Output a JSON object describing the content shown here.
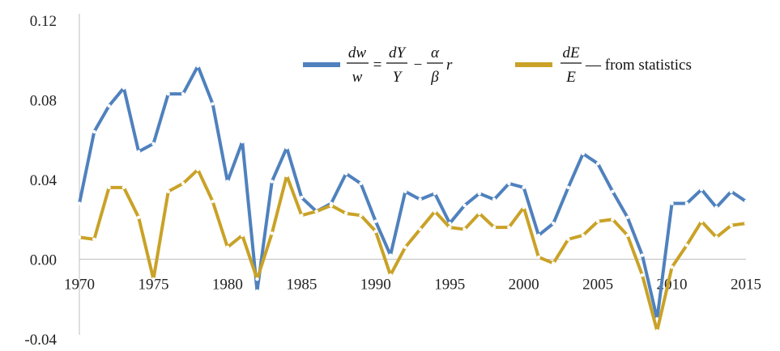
{
  "chart_data": {
    "type": "line",
    "title": "",
    "xlabel": "",
    "ylabel": "",
    "xlim": [
      1970,
      2015
    ],
    "ylim": [
      -0.04,
      0.12
    ],
    "x_ticks": [
      "1970",
      "1975",
      "1980",
      "1985",
      "1990",
      "1995",
      "2000",
      "2005",
      "2010",
      "2015"
    ],
    "y_ticks": [
      "0.12",
      "0.08",
      "0.04",
      "0.00",
      "-0.04"
    ],
    "grid": false,
    "legend_position": "top-right",
    "x": [
      1970,
      1971,
      1972,
      1973,
      1974,
      1975,
      1976,
      1977,
      1978,
      1979,
      1980,
      1981,
      1982,
      1983,
      1984,
      1985,
      1986,
      1987,
      1988,
      1989,
      1990,
      1991,
      1992,
      1993,
      1994,
      1995,
      1996,
      1997,
      1998,
      1999,
      2000,
      2001,
      2002,
      2003,
      2004,
      2005,
      2006,
      2007,
      2008,
      2009,
      2010,
      2011,
      2012,
      2013,
      2014,
      2015
    ],
    "series": [
      {
        "color": "#4f81bd",
        "legend": {
          "lhs_num": "dw",
          "lhs_den": "w",
          "eq": "=",
          "rhs_num": "dY",
          "rhs_den": "Y",
          "minus": "−",
          "frac2_num": "α",
          "frac2_den": "β",
          "tail": "r"
        },
        "values": [
          0.028,
          0.064,
          0.077,
          0.086,
          0.054,
          0.058,
          0.083,
          0.083,
          0.097,
          0.078,
          0.039,
          0.059,
          -0.016,
          0.039,
          0.056,
          0.031,
          0.024,
          0.028,
          0.043,
          0.038,
          0.019,
          0.002,
          0.034,
          0.03,
          0.033,
          0.018,
          0.027,
          0.033,
          0.03,
          0.038,
          0.036,
          0.012,
          0.018,
          0.036,
          0.053,
          0.048,
          0.034,
          0.021,
          0.002,
          -0.03,
          0.028,
          0.028,
          0.035,
          0.026,
          0.034,
          0.029
        ]
      },
      {
        "color": "#c9a227",
        "legend": {
          "frac_num": "dE",
          "frac_den": "E",
          "tail": "— from statistics"
        },
        "values": [
          0.011,
          0.01,
          0.036,
          0.036,
          0.021,
          -0.01,
          0.034,
          0.038,
          0.045,
          0.029,
          0.006,
          0.012,
          -0.01,
          0.013,
          0.042,
          0.022,
          0.024,
          0.027,
          0.023,
          0.022,
          0.014,
          -0.008,
          0.006,
          0.015,
          0.024,
          0.016,
          0.015,
          0.023,
          0.016,
          0.016,
          0.026,
          0.001,
          -0.002,
          0.01,
          0.012,
          0.019,
          0.02,
          0.012,
          -0.008,
          -0.036,
          -0.004,
          0.007,
          0.019,
          0.011,
          0.017,
          0.018
        ]
      }
    ]
  }
}
